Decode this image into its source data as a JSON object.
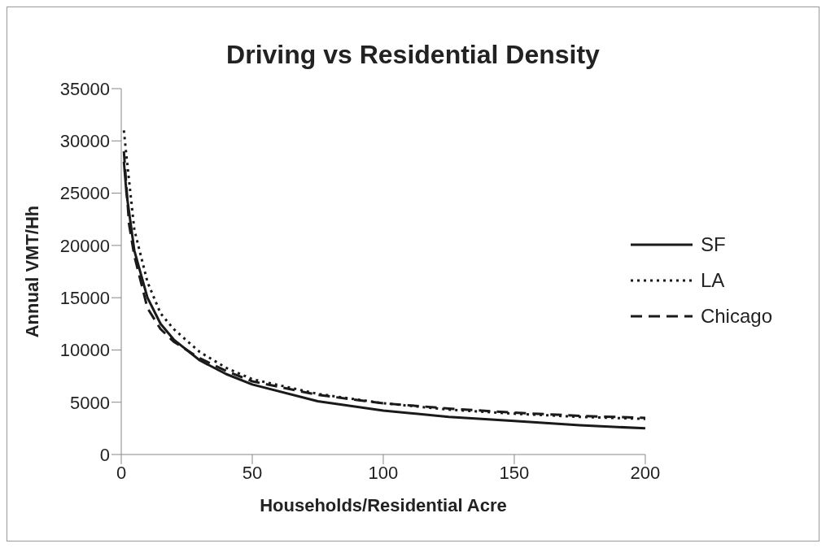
{
  "chart_data": {
    "type": "line",
    "title": "Driving vs Residential Density",
    "xlabel": "Households/Residential Acre",
    "ylabel": "Annual VMT/Hh",
    "xlim": [
      0,
      200
    ],
    "xticks": [
      0,
      50,
      100,
      150,
      200
    ],
    "ylim": [
      0,
      35000
    ],
    "yticks": [
      0,
      5000,
      10000,
      15000,
      20000,
      25000,
      30000,
      35000
    ],
    "grid": false,
    "legend": "right",
    "marker": "none",
    "series": [
      {
        "name": "SF",
        "color": "#1a1a1a",
        "line_style": "solid",
        "x": [
          1,
          2,
          5,
          10,
          15,
          20,
          30,
          40,
          50,
          75,
          100,
          125,
          150,
          175,
          200
        ],
        "values": [
          28000,
          25000,
          19500,
          15000,
          12500,
          11000,
          9000,
          7700,
          6700,
          5100,
          4200,
          3600,
          3200,
          2800,
          2500
        ]
      },
      {
        "name": "LA",
        "color": "#1a1a1a",
        "line_style": "dotted",
        "x": [
          1,
          2,
          5,
          10,
          15,
          20,
          30,
          40,
          50,
          75,
          100,
          125,
          150,
          175,
          200
        ],
        "values": [
          31000,
          28500,
          21500,
          16500,
          13500,
          12000,
          9800,
          8300,
          7200,
          5800,
          4900,
          4300,
          3900,
          3600,
          3400
        ]
      },
      {
        "name": "Chicago",
        "color": "#1a1a1a",
        "line_style": "dashed",
        "x": [
          1,
          3,
          5,
          10,
          15,
          20,
          30,
          40,
          50,
          75,
          100,
          125,
          150,
          175,
          200
        ],
        "values": [
          29000,
          22000,
          19000,
          14000,
          12000,
          10800,
          9200,
          8000,
          7000,
          5700,
          4900,
          4400,
          4000,
          3700,
          3500
        ]
      }
    ]
  }
}
